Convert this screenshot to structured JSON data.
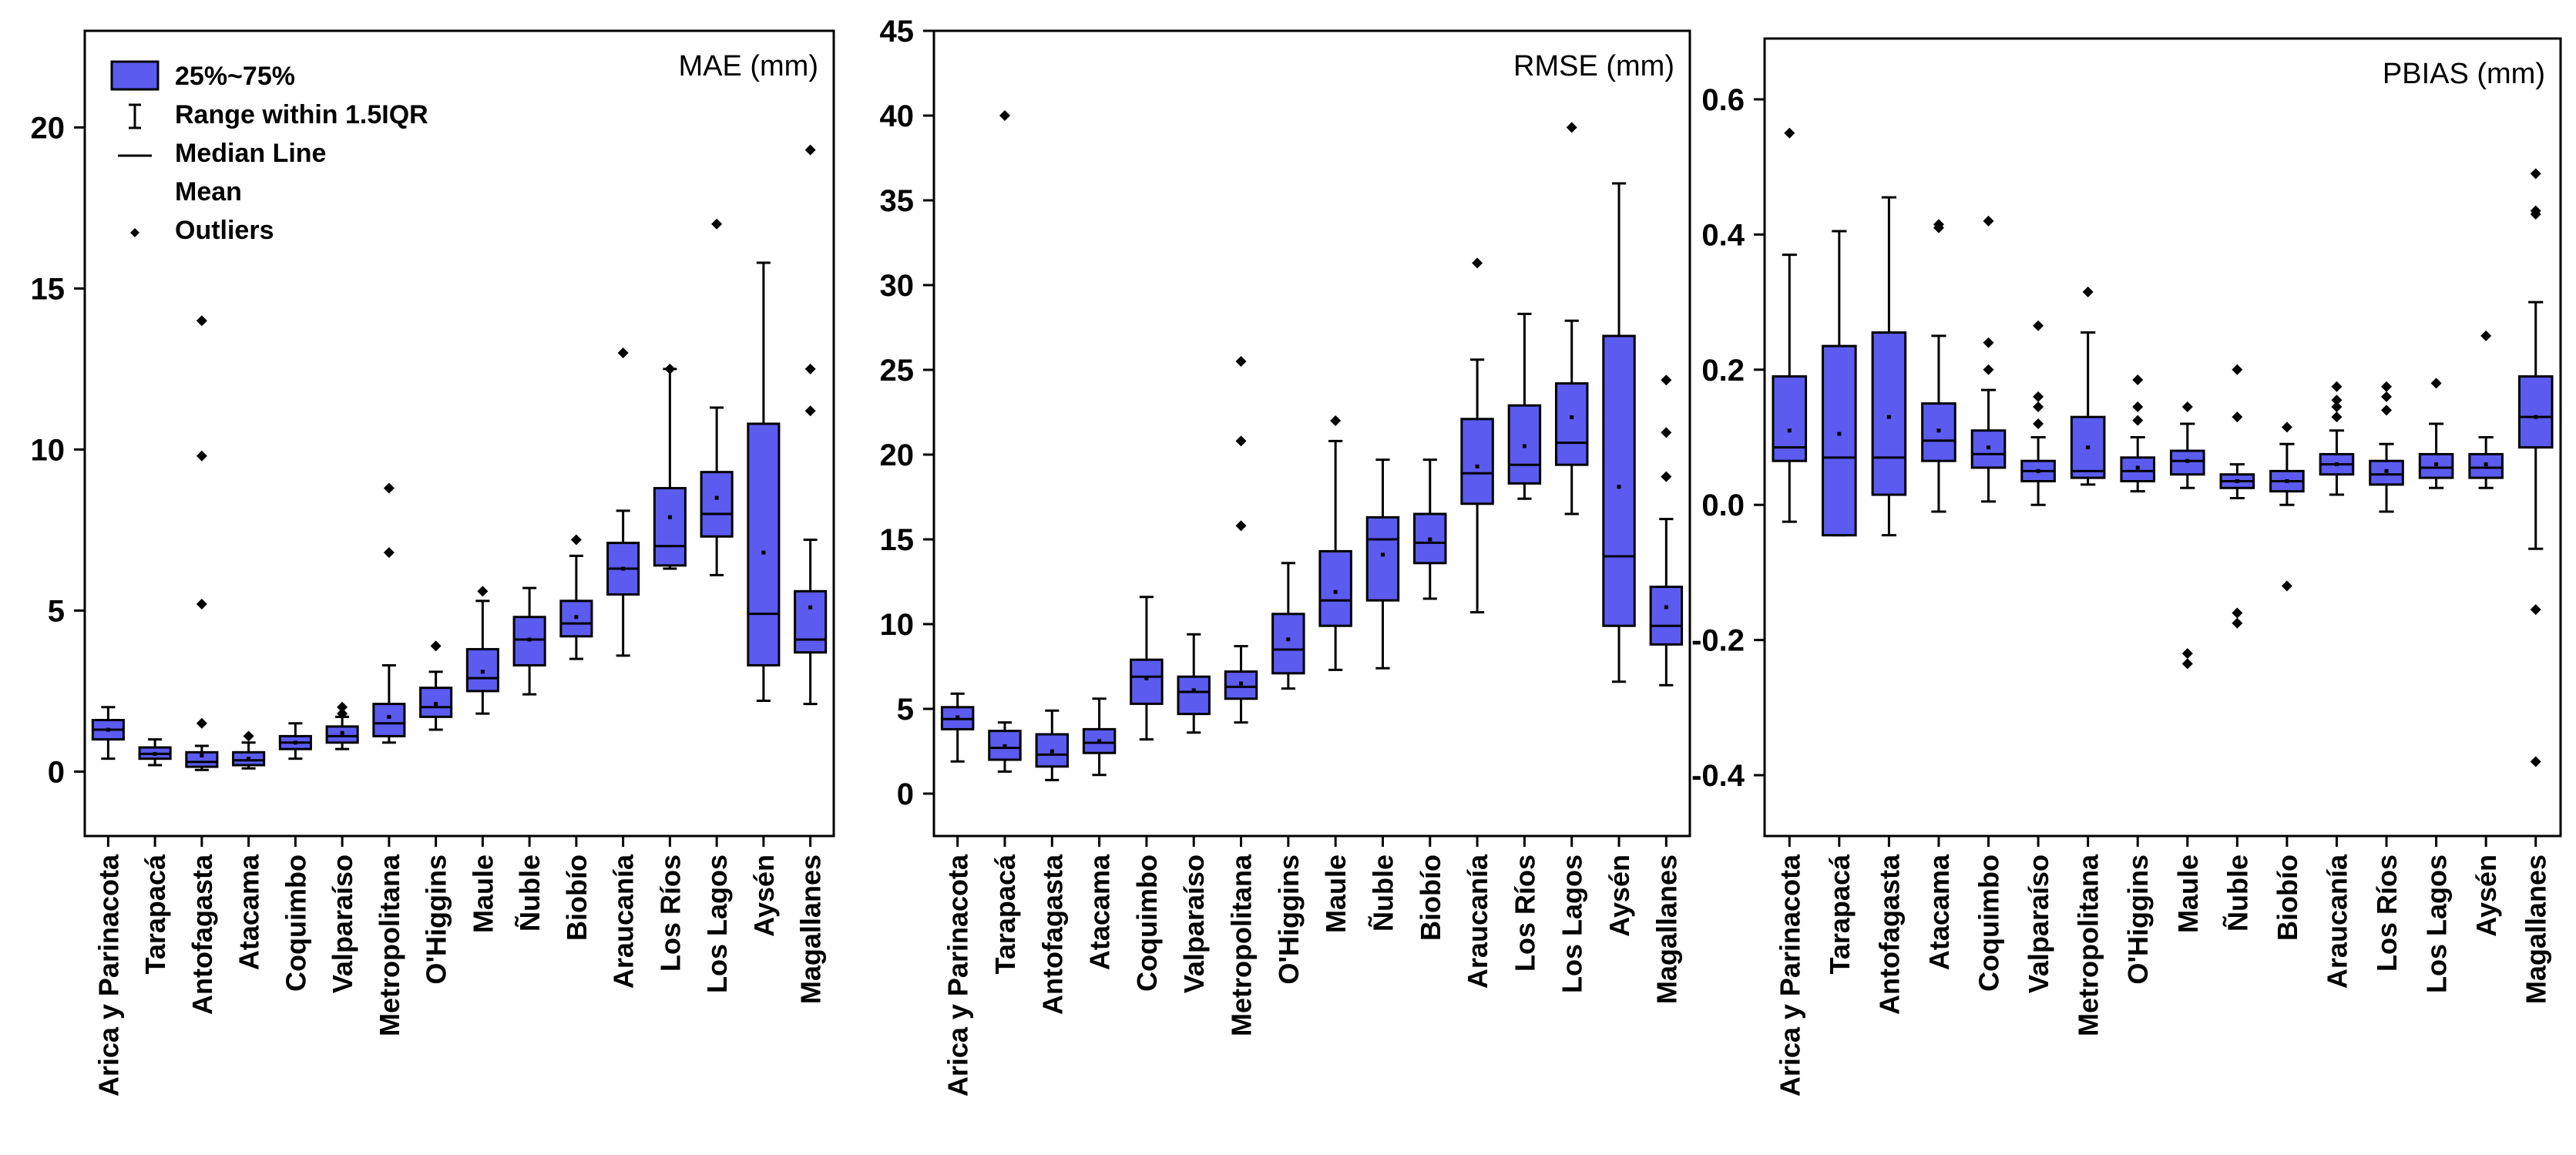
{
  "chart_data": [
    {
      "type": "box",
      "title": "MAE (mm)",
      "box_color": "#5b5bf0",
      "ylim": [
        -2,
        23
      ],
      "yticks": [
        0,
        5,
        10,
        15,
        20
      ],
      "categories": [
        "Arica y Parinacota",
        "Tarapacá",
        "Antofagasta",
        "Atacama",
        "Coquimbo",
        "Valparaíso",
        "Metropolitana",
        "O'Higgins",
        "Maule",
        "Ñuble",
        "Biobío",
        "Araucanía",
        "Los Ríos",
        "Los Lagos",
        "Aysén",
        "Magallanes"
      ],
      "boxes": [
        {
          "q1": 1.0,
          "median": 1.3,
          "q3": 1.6,
          "wlo": 0.4,
          "whi": 2.0,
          "mean": 1.3,
          "outliers": []
        },
        {
          "q1": 0.4,
          "median": 0.55,
          "q3": 0.75,
          "wlo": 0.2,
          "whi": 1.0,
          "mean": 0.55,
          "outliers": []
        },
        {
          "q1": 0.15,
          "median": 0.3,
          "q3": 0.6,
          "wlo": 0.05,
          "whi": 0.8,
          "mean": 0.5,
          "outliers": [
            14.0,
            9.8,
            5.2,
            1.5
          ]
        },
        {
          "q1": 0.2,
          "median": 0.35,
          "q3": 0.6,
          "wlo": 0.1,
          "whi": 0.9,
          "mean": 0.4,
          "outliers": [
            1.1
          ]
        },
        {
          "q1": 0.7,
          "median": 0.9,
          "q3": 1.1,
          "wlo": 0.4,
          "whi": 1.5,
          "mean": 0.9,
          "outliers": []
        },
        {
          "q1": 0.9,
          "median": 1.1,
          "q3": 1.4,
          "wlo": 0.7,
          "whi": 1.7,
          "mean": 1.2,
          "outliers": [
            1.8,
            2.0
          ]
        },
        {
          "q1": 1.1,
          "median": 1.5,
          "q3": 2.1,
          "wlo": 0.9,
          "whi": 3.3,
          "mean": 1.7,
          "outliers": [
            6.8,
            8.8
          ]
        },
        {
          "q1": 1.7,
          "median": 2.0,
          "q3": 2.6,
          "wlo": 1.3,
          "whi": 3.1,
          "mean": 2.1,
          "outliers": [
            3.9
          ]
        },
        {
          "q1": 2.5,
          "median": 2.9,
          "q3": 3.8,
          "wlo": 1.8,
          "whi": 5.3,
          "mean": 3.1,
          "outliers": [
            5.6
          ]
        },
        {
          "q1": 3.3,
          "median": 4.1,
          "q3": 4.8,
          "wlo": 2.4,
          "whi": 5.7,
          "mean": 4.1,
          "outliers": []
        },
        {
          "q1": 4.2,
          "median": 4.6,
          "q3": 5.3,
          "wlo": 3.5,
          "whi": 6.7,
          "mean": 4.8,
          "outliers": [
            7.2
          ]
        },
        {
          "q1": 5.5,
          "median": 6.3,
          "q3": 7.1,
          "wlo": 3.6,
          "whi": 8.1,
          "mean": 6.3,
          "outliers": [
            13.0
          ]
        },
        {
          "q1": 6.4,
          "median": 7.0,
          "q3": 8.8,
          "wlo": 6.3,
          "whi": 12.5,
          "mean": 7.9,
          "outliers": [
            12.5
          ]
        },
        {
          "q1": 7.3,
          "median": 8.0,
          "q3": 9.3,
          "wlo": 6.1,
          "whi": 11.3,
          "mean": 8.5,
          "outliers": [
            17.0
          ]
        },
        {
          "q1": 3.3,
          "median": 4.9,
          "q3": 10.8,
          "wlo": 2.2,
          "whi": 15.8,
          "mean": 6.8,
          "outliers": []
        },
        {
          "q1": 3.7,
          "median": 4.1,
          "q3": 5.6,
          "wlo": 2.1,
          "whi": 7.2,
          "mean": 5.1,
          "outliers": [
            11.2,
            12.5,
            19.3
          ]
        }
      ],
      "legend": {
        "position": "top-left",
        "items": [
          "25%~75%",
          "Range within 1.5IQR",
          "Median Line",
          "Mean",
          "Outliers"
        ]
      }
    },
    {
      "type": "box",
      "title": "RMSE (mm)",
      "box_color": "#5b5bf0",
      "ylim": [
        -2.5,
        45
      ],
      "yticks": [
        0,
        5,
        10,
        15,
        20,
        25,
        30,
        35,
        40,
        45
      ],
      "categories": [
        "Arica y Parinacota",
        "Tarapacá",
        "Antofagasta",
        "Atacama",
        "Coquimbo",
        "Valparaíso",
        "Metropolitana",
        "O'Higgins",
        "Maule",
        "Ñuble",
        "Biobío",
        "Araucanía",
        "Los Ríos",
        "Los Lagos",
        "Aysén",
        "Magallanes"
      ],
      "boxes": [
        {
          "q1": 3.8,
          "median": 4.4,
          "q3": 5.1,
          "wlo": 1.9,
          "whi": 5.9,
          "mean": 4.5,
          "outliers": []
        },
        {
          "q1": 2.0,
          "median": 2.7,
          "q3": 3.7,
          "wlo": 1.3,
          "whi": 4.2,
          "mean": 2.8,
          "outliers": [
            40.0
          ]
        },
        {
          "q1": 1.6,
          "median": 2.3,
          "q3": 3.5,
          "wlo": 0.8,
          "whi": 4.9,
          "mean": 2.5,
          "outliers": []
        },
        {
          "q1": 2.4,
          "median": 3.0,
          "q3": 3.8,
          "wlo": 1.1,
          "whi": 5.6,
          "mean": 3.1,
          "outliers": []
        },
        {
          "q1": 5.3,
          "median": 6.9,
          "q3": 7.9,
          "wlo": 3.2,
          "whi": 11.6,
          "mean": 6.8,
          "outliers": []
        },
        {
          "q1": 4.7,
          "median": 6.0,
          "q3": 6.9,
          "wlo": 3.6,
          "whi": 9.4,
          "mean": 6.1,
          "outliers": []
        },
        {
          "q1": 5.6,
          "median": 6.3,
          "q3": 7.2,
          "wlo": 4.2,
          "whi": 8.7,
          "mean": 6.5,
          "outliers": [
            15.8,
            20.8,
            25.5
          ]
        },
        {
          "q1": 7.1,
          "median": 8.5,
          "q3": 10.6,
          "wlo": 6.2,
          "whi": 13.6,
          "mean": 9.1,
          "outliers": []
        },
        {
          "q1": 9.9,
          "median": 11.4,
          "q3": 14.3,
          "wlo": 7.3,
          "whi": 20.8,
          "mean": 11.9,
          "outliers": [
            22.0
          ]
        },
        {
          "q1": 11.4,
          "median": 15.0,
          "q3": 16.3,
          "wlo": 7.4,
          "whi": 19.7,
          "mean": 14.1,
          "outliers": []
        },
        {
          "q1": 13.6,
          "median": 14.8,
          "q3": 16.5,
          "wlo": 11.5,
          "whi": 19.7,
          "mean": 15.0,
          "outliers": []
        },
        {
          "q1": 17.1,
          "median": 18.9,
          "q3": 22.1,
          "wlo": 10.7,
          "whi": 25.6,
          "mean": 19.3,
          "outliers": [
            31.3
          ]
        },
        {
          "q1": 18.3,
          "median": 19.4,
          "q3": 22.9,
          "wlo": 17.4,
          "whi": 28.3,
          "mean": 20.5,
          "outliers": []
        },
        {
          "q1": 19.4,
          "median": 20.7,
          "q3": 24.2,
          "wlo": 16.5,
          "whi": 27.9,
          "mean": 22.2,
          "outliers": [
            39.3
          ]
        },
        {
          "q1": 9.9,
          "median": 14.0,
          "q3": 27.0,
          "wlo": 6.6,
          "whi": 36.0,
          "mean": 18.1,
          "outliers": []
        },
        {
          "q1": 8.8,
          "median": 9.9,
          "q3": 12.2,
          "wlo": 6.4,
          "whi": 16.2,
          "mean": 11.0,
          "outliers": [
            18.7,
            21.3,
            24.4
          ]
        }
      ]
    },
    {
      "type": "box",
      "title": "PBIAS (mm)",
      "box_color": "#5b5bf0",
      "ylim": [
        -0.49,
        0.69
      ],
      "yticks": [
        -0.4,
        -0.2,
        0.0,
        0.2,
        0.4,
        0.6
      ],
      "ytick_labels": [
        "-0.4",
        "-0.2",
        "0.0",
        "0.2",
        "0.4",
        "0.6"
      ],
      "categories": [
        "Arica y Parinacota",
        "Tarapacá",
        "Antofagasta",
        "Atacama",
        "Coquimbo",
        "Valparaíso",
        "Metropolitana",
        "O'Higgins",
        "Maule",
        "Ñuble",
        "Biobío",
        "Araucanía",
        "Los Ríos",
        "Los Lagos",
        "Aysén",
        "Magallanes"
      ],
      "boxes": [
        {
          "q1": 0.065,
          "median": 0.085,
          "q3": 0.19,
          "wlo": -0.025,
          "whi": 0.37,
          "mean": 0.11,
          "outliers": [
            0.55
          ]
        },
        {
          "q1": -0.045,
          "median": 0.07,
          "q3": 0.235,
          "wlo": -0.045,
          "whi": 0.405,
          "mean": 0.105,
          "outliers": []
        },
        {
          "q1": 0.015,
          "median": 0.07,
          "q3": 0.255,
          "wlo": -0.045,
          "whi": 0.455,
          "mean": 0.13,
          "outliers": []
        },
        {
          "q1": 0.065,
          "median": 0.095,
          "q3": 0.15,
          "wlo": -0.01,
          "whi": 0.25,
          "mean": 0.11,
          "outliers": [
            0.41,
            0.415
          ]
        },
        {
          "q1": 0.055,
          "median": 0.075,
          "q3": 0.11,
          "wlo": 0.005,
          "whi": 0.17,
          "mean": 0.085,
          "outliers": [
            0.2,
            0.24,
            0.42
          ]
        },
        {
          "q1": 0.035,
          "median": 0.05,
          "q3": 0.065,
          "wlo": 0.0,
          "whi": 0.1,
          "mean": 0.05,
          "outliers": [
            0.12,
            0.145,
            0.16,
            0.265
          ]
        },
        {
          "q1": 0.04,
          "median": 0.05,
          "q3": 0.13,
          "wlo": 0.03,
          "whi": 0.255,
          "mean": 0.085,
          "outliers": [
            0.315
          ]
        },
        {
          "q1": 0.035,
          "median": 0.05,
          "q3": 0.07,
          "wlo": 0.02,
          "whi": 0.1,
          "mean": 0.055,
          "outliers": [
            0.125,
            0.145,
            0.185
          ]
        },
        {
          "q1": 0.045,
          "median": 0.065,
          "q3": 0.08,
          "wlo": 0.025,
          "whi": 0.12,
          "mean": 0.065,
          "outliers": [
            0.145,
            -0.22,
            -0.235
          ]
        },
        {
          "q1": 0.025,
          "median": 0.035,
          "q3": 0.045,
          "wlo": 0.01,
          "whi": 0.06,
          "mean": 0.035,
          "outliers": [
            0.13,
            0.2,
            -0.16,
            -0.175
          ]
        },
        {
          "q1": 0.02,
          "median": 0.035,
          "q3": 0.05,
          "wlo": 0.0,
          "whi": 0.09,
          "mean": 0.035,
          "outliers": [
            0.115,
            -0.12
          ]
        },
        {
          "q1": 0.045,
          "median": 0.06,
          "q3": 0.075,
          "wlo": 0.015,
          "whi": 0.11,
          "mean": 0.06,
          "outliers": [
            0.13,
            0.145,
            0.155,
            0.175
          ]
        },
        {
          "q1": 0.03,
          "median": 0.045,
          "q3": 0.065,
          "wlo": -0.01,
          "whi": 0.09,
          "mean": 0.05,
          "outliers": [
            0.14,
            0.16,
            0.175
          ]
        },
        {
          "q1": 0.04,
          "median": 0.055,
          "q3": 0.075,
          "wlo": 0.025,
          "whi": 0.12,
          "mean": 0.06,
          "outliers": [
            0.18
          ]
        },
        {
          "q1": 0.04,
          "median": 0.055,
          "q3": 0.075,
          "wlo": 0.025,
          "whi": 0.1,
          "mean": 0.06,
          "outliers": [
            0.25
          ]
        },
        {
          "q1": 0.085,
          "median": 0.13,
          "q3": 0.19,
          "wlo": -0.065,
          "whi": 0.3,
          "mean": 0.13,
          "outliers": [
            0.43,
            0.435,
            0.49,
            -0.155,
            -0.38
          ]
        }
      ]
    }
  ]
}
